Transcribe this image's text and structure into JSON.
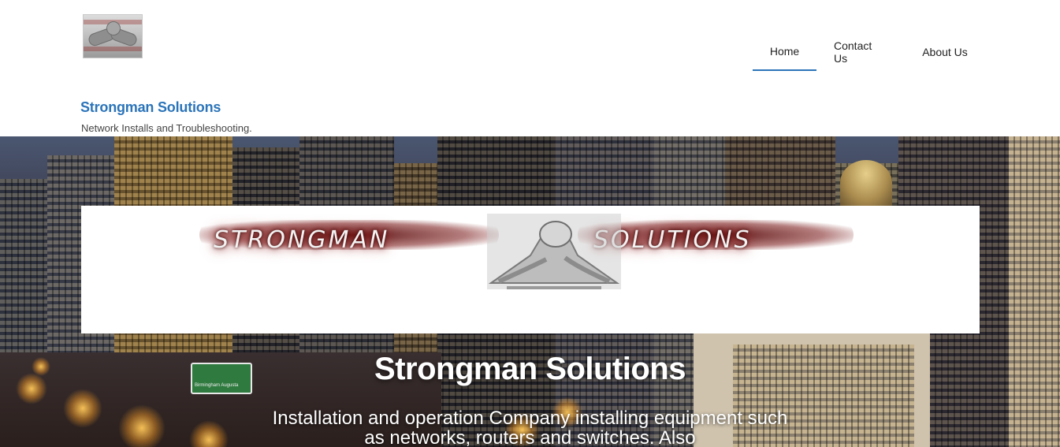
{
  "header": {
    "logo_icon": "arm-wrestling-logo-icon",
    "site_title": "Strongman Solutions",
    "tagline": "Network Installs and Troubleshooting."
  },
  "nav": {
    "items": [
      {
        "label": "Home",
        "active": true
      },
      {
        "label": "Contact Us",
        "active": false
      },
      {
        "label": "About Us",
        "active": false
      }
    ]
  },
  "hero": {
    "banner": {
      "text_left": "STRONGMAN",
      "text_right": "SOLUTIONS",
      "icon": "arm-wrestling-icon"
    },
    "title": "Strongman Solutions",
    "description": "Installation and operation Company installing equipment such as networks, routers and switches. Also",
    "road_sign_text": "Birmingham  Augusta",
    "background": "city-skyline-night-image"
  },
  "colors": {
    "accent": "#2b74b9",
    "banner_red": "#9b2222"
  }
}
